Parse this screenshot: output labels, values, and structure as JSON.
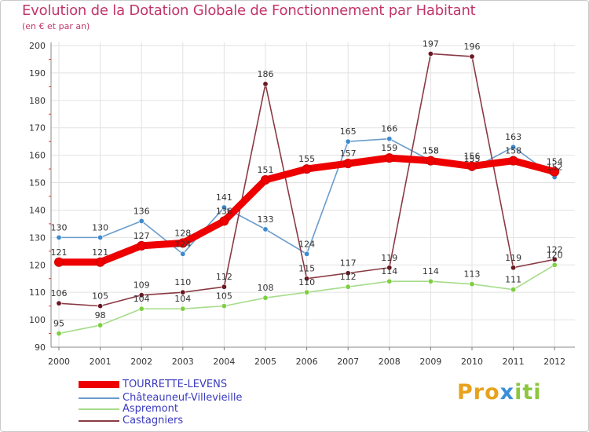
{
  "title": "Evolution de la Dotation Globale de Fonctionnement par Habitant",
  "subtitle": "(en € et par an)",
  "logo": {
    "part1": "Pro",
    "part2": "x",
    "part3": "iti"
  },
  "chart_data": {
    "type": "line",
    "title": "Evolution de la Dotation Globale de Fonctionnement par Habitant",
    "subtitle": "(en € et par an)",
    "x": [
      "2000",
      "2001",
      "2002",
      "2003",
      "2004",
      "2005",
      "2006",
      "2007",
      "2008",
      "2009",
      "2010",
      "2011",
      "2012"
    ],
    "ylim": [
      90,
      200
    ],
    "yticks": [
      "90",
      "100",
      "110",
      "120",
      "130",
      "140",
      "150",
      "160",
      "170",
      "180",
      "190",
      "200"
    ],
    "grid": true,
    "legend_position": "bottom-left",
    "series": [
      {
        "name": "TOURRETTE-LEVENS",
        "color": "#ee0000",
        "values": [
          121,
          121,
          127,
          128,
          136,
          151,
          155,
          157,
          159,
          158,
          156,
          158,
          154
        ],
        "labels": [
          "121",
          "121",
          "127",
          "128",
          "136",
          "151",
          "155",
          "157",
          "159",
          "158",
          "156",
          "158",
          "154"
        ]
      },
      {
        "name": "Châteauneuf-Villevieille",
        "color": "#6a9ccc",
        "marker": "#3d8ad0",
        "values": [
          130,
          130,
          136,
          124,
          141,
          133,
          124,
          165,
          166,
          158,
          155,
          163,
          152
        ],
        "labels": [
          "130",
          "130",
          "136",
          "124",
          "141",
          "133",
          "124",
          "165",
          "166",
          "158",
          "155",
          "163",
          "152"
        ]
      },
      {
        "name": "Aspremont",
        "color": "#a6dc8a",
        "marker": "#7dcf3f",
        "values": [
          95,
          98,
          104,
          104,
          105,
          108,
          110,
          112,
          114,
          114,
          113,
          111,
          120
        ],
        "labels": [
          "95",
          "98",
          "104",
          "104",
          "105",
          "108",
          "110",
          "112",
          "114",
          "114",
          "113",
          "111",
          "120"
        ]
      },
      {
        "name": "Castagniers",
        "color": "#8a3a44",
        "marker": "#6a1822",
        "values": [
          106,
          105,
          109,
          110,
          112,
          186,
          115,
          117,
          119,
          197,
          196,
          119,
          122
        ],
        "labels": [
          "106",
          "105",
          "109",
          "110",
          "112",
          "186",
          "115",
          "117",
          "119",
          "197",
          "196",
          "119",
          "122"
        ]
      }
    ]
  }
}
